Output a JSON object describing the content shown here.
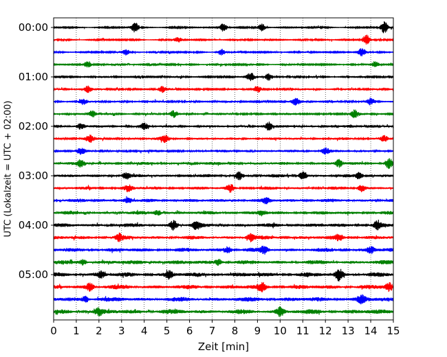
{
  "chart_data": {
    "type": "line",
    "chart_kind": "seismogram helicorder",
    "xlabel": "Zeit  [min]",
    "ylabel": "UTC (Lokalzeit = UTC + 02:00)",
    "x_ticks": [
      0,
      1,
      2,
      3,
      4,
      5,
      6,
      7,
      8,
      9,
      10,
      11,
      12,
      13,
      14,
      15
    ],
    "xlim": [
      0,
      15
    ],
    "x_grid": "dotted vertical lines at each minute",
    "trace_interval_minutes": 15,
    "trace_start_utc": "00:00",
    "trace_count": 24,
    "y_tick_labels": [
      "00:00",
      "01:00",
      "02:00",
      "03:00",
      "04:00",
      "05:00"
    ],
    "trace_colors": [
      "#000000",
      "#ff0000",
      "#0000ff",
      "#008000"
    ],
    "traces": [
      {
        "start": "00:00",
        "color": "#000000",
        "events": [
          {
            "t": 3.6,
            "amp": 1.0
          },
          {
            "t": 7.5,
            "amp": 0.8
          },
          {
            "t": 9.2,
            "amp": 0.7
          },
          {
            "t": 14.6,
            "amp": 1.1
          }
        ]
      },
      {
        "start": "00:15",
        "color": "#ff0000",
        "events": [
          {
            "t": 5.5,
            "amp": 0.5
          },
          {
            "t": 13.8,
            "amp": 1.0
          }
        ]
      },
      {
        "start": "00:30",
        "color": "#0000ff",
        "events": [
          {
            "t": 3.2,
            "amp": 0.5
          },
          {
            "t": 7.4,
            "amp": 0.6
          },
          {
            "t": 13.6,
            "amp": 0.8
          }
        ]
      },
      {
        "start": "00:45",
        "color": "#008000",
        "events": [
          {
            "t": 1.5,
            "amp": 0.6
          },
          {
            "t": 14.2,
            "amp": 0.6
          }
        ]
      },
      {
        "start": "01:00",
        "color": "#000000",
        "events": [
          {
            "t": 8.7,
            "amp": 0.8
          },
          {
            "t": 9.5,
            "amp": 0.7
          }
        ]
      },
      {
        "start": "01:15",
        "color": "#ff0000",
        "events": [
          {
            "t": 1.5,
            "amp": 0.6
          },
          {
            "t": 4.8,
            "amp": 0.5
          },
          {
            "t": 9.0,
            "amp": 0.7
          }
        ]
      },
      {
        "start": "01:30",
        "color": "#0000ff",
        "events": [
          {
            "t": 1.3,
            "amp": 0.5
          },
          {
            "t": 10.7,
            "amp": 0.6
          },
          {
            "t": 14.0,
            "amp": 0.6
          }
        ]
      },
      {
        "start": "01:45",
        "color": "#008000",
        "events": [
          {
            "t": 1.7,
            "amp": 0.6
          },
          {
            "t": 5.3,
            "amp": 0.6
          },
          {
            "t": 13.3,
            "amp": 0.7
          }
        ]
      },
      {
        "start": "02:00",
        "color": "#000000",
        "events": [
          {
            "t": 1.2,
            "amp": 0.6
          },
          {
            "t": 4.0,
            "amp": 0.6
          },
          {
            "t": 9.5,
            "amp": 0.8
          }
        ]
      },
      {
        "start": "02:15",
        "color": "#ff0000",
        "events": [
          {
            "t": 1.6,
            "amp": 0.6
          },
          {
            "t": 4.9,
            "amp": 0.7
          },
          {
            "t": 14.6,
            "amp": 0.6
          }
        ]
      },
      {
        "start": "02:30",
        "color": "#0000ff",
        "events": [
          {
            "t": 1.2,
            "amp": 0.5
          },
          {
            "t": 12.0,
            "amp": 0.6
          }
        ]
      },
      {
        "start": "02:45",
        "color": "#008000",
        "events": [
          {
            "t": 1.2,
            "amp": 0.6
          },
          {
            "t": 12.6,
            "amp": 0.7
          },
          {
            "t": 14.8,
            "amp": 0.9
          }
        ]
      },
      {
        "start": "03:00",
        "color": "#000000",
        "events": [
          {
            "t": 3.2,
            "amp": 0.6
          },
          {
            "t": 8.2,
            "amp": 0.7
          },
          {
            "t": 11.0,
            "amp": 0.8
          },
          {
            "t": 13.5,
            "amp": 0.7
          }
        ]
      },
      {
        "start": "03:15",
        "color": "#ff0000",
        "events": [
          {
            "t": 3.3,
            "amp": 0.6
          },
          {
            "t": 7.8,
            "amp": 0.7
          },
          {
            "t": 13.6,
            "amp": 0.7
          }
        ]
      },
      {
        "start": "03:30",
        "color": "#0000ff",
        "events": [
          {
            "t": 3.3,
            "amp": 0.5
          },
          {
            "t": 9.4,
            "amp": 0.5
          }
        ]
      },
      {
        "start": "03:45",
        "color": "#008000",
        "events": [
          {
            "t": 4.6,
            "amp": 0.5
          },
          {
            "t": 9.2,
            "amp": 0.5
          }
        ]
      },
      {
        "start": "04:00",
        "color": "#000000",
        "events": [
          {
            "t": 5.3,
            "amp": 0.9
          },
          {
            "t": 6.3,
            "amp": 0.7
          },
          {
            "t": 14.3,
            "amp": 0.8
          }
        ]
      },
      {
        "start": "04:15",
        "color": "#ff0000",
        "events": [
          {
            "t": 2.9,
            "amp": 0.6
          },
          {
            "t": 8.7,
            "amp": 0.7
          },
          {
            "t": 12.6,
            "amp": 0.6
          }
        ]
      },
      {
        "start": "04:30",
        "color": "#0000ff",
        "events": [
          {
            "t": 7.7,
            "amp": 0.6
          },
          {
            "t": 9.3,
            "amp": 0.7
          },
          {
            "t": 14.0,
            "amp": 0.6
          }
        ]
      },
      {
        "start": "04:45",
        "color": "#008000",
        "events": [
          {
            "t": 1.3,
            "amp": 0.5
          },
          {
            "t": 7.3,
            "amp": 0.6
          }
        ]
      },
      {
        "start": "05:00",
        "color": "#000000",
        "events": [
          {
            "t": 2.1,
            "amp": 0.6
          },
          {
            "t": 5.1,
            "amp": 0.7
          },
          {
            "t": 12.6,
            "amp": 1.1
          }
        ]
      },
      {
        "start": "05:15",
        "color": "#ff0000",
        "events": [
          {
            "t": 1.6,
            "amp": 0.7
          },
          {
            "t": 9.2,
            "amp": 0.7
          },
          {
            "t": 14.8,
            "amp": 0.8
          }
        ]
      },
      {
        "start": "05:30",
        "color": "#0000ff",
        "events": [
          {
            "t": 1.4,
            "amp": 0.6
          },
          {
            "t": 13.6,
            "amp": 0.6
          }
        ]
      },
      {
        "start": "05:45",
        "color": "#008000",
        "events": [
          {
            "t": 2.0,
            "amp": 0.5
          },
          {
            "t": 10.0,
            "amp": 0.8
          }
        ]
      }
    ]
  }
}
